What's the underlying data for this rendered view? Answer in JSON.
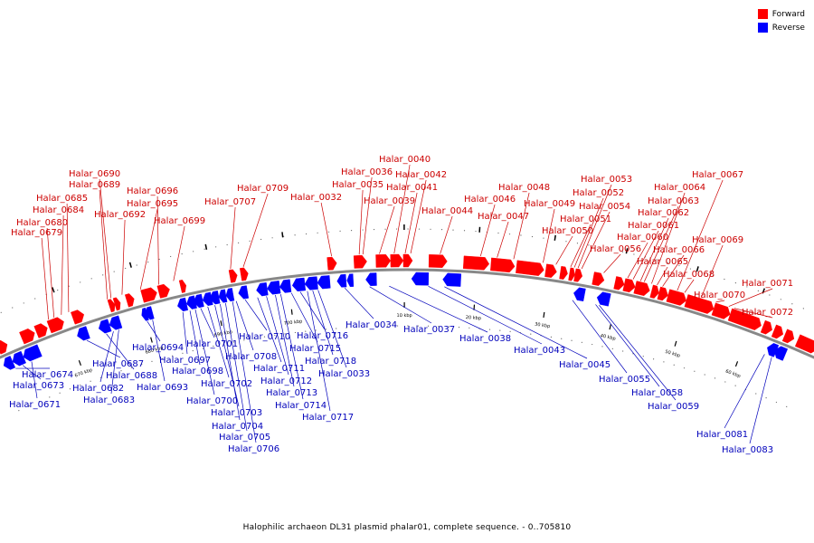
{
  "caption": "Halophilic archaeon DL31 plasmid phalar01, complete sequence. - 0..705810",
  "legend": [
    {
      "label": "Forward",
      "color": "#ff0000"
    },
    {
      "label": "Reverse",
      "color": "#0000ff"
    }
  ],
  "colors": {
    "forward": "#ff0000",
    "reverse": "#0000ff",
    "forward_label": "#cc0000",
    "reverse_label": "#0000bb",
    "backbone": "#888888",
    "leader": "#000000"
  },
  "ticks": [
    "670 kbp",
    "680 kbp",
    "690 kbp",
    "700 kbp",
    "10 kbp",
    "20 kbp",
    "30 kbp",
    "40 kbp",
    "50 kbp",
    "60 kbp"
  ],
  "genes": {
    "forward": [
      "Halar_0679",
      "Halar_0680",
      "Halar_0684",
      "Halar_0685",
      "Halar_0689",
      "Halar_0690",
      "Halar_0692",
      "Halar_0695",
      "Halar_0696",
      "Halar_0699",
      "Halar_0707",
      "Halar_0709",
      "Halar_0032",
      "Halar_0035",
      "Halar_0036",
      "Halar_0039",
      "Halar_0040",
      "Halar_0041",
      "Halar_0042",
      "Halar_0044",
      "Halar_0046",
      "Halar_0047",
      "Halar_0048",
      "Halar_0049",
      "Halar_0050",
      "Halar_0051",
      "Halar_0052",
      "Halar_0053",
      "Halar_0054",
      "Halar_0056",
      "Halar_0060",
      "Halar_0061",
      "Halar_0062",
      "Halar_0063",
      "Halar_0064",
      "Halar_0065",
      "Halar_0066",
      "Halar_0067",
      "Halar_0068",
      "Halar_0069",
      "Halar_0070",
      "Halar_0071",
      "Halar_0072"
    ],
    "reverse": [
      "Halar_0674",
      "Halar_0673",
      "Halar_0671",
      "Halar_0687",
      "Halar_0688",
      "Halar_0682",
      "Halar_0683",
      "Halar_0694",
      "Halar_0693",
      "Halar_0697",
      "Halar_0698",
      "Halar_0700",
      "Halar_0701",
      "Halar_0702",
      "Halar_0703",
      "Halar_0704",
      "Halar_0705",
      "Halar_0706",
      "Halar_0708",
      "Halar_0710",
      "Halar_0711",
      "Halar_0712",
      "Halar_0713",
      "Halar_0714",
      "Halar_0715",
      "Halar_0716",
      "Halar_0717",
      "Halar_0718",
      "Halar_0033",
      "Halar_0034",
      "Halar_0037",
      "Halar_0038",
      "Halar_0043",
      "Halar_0045",
      "Halar_0055",
      "Halar_0058",
      "Halar_0059",
      "Halar_0081",
      "Halar_0083"
    ]
  }
}
